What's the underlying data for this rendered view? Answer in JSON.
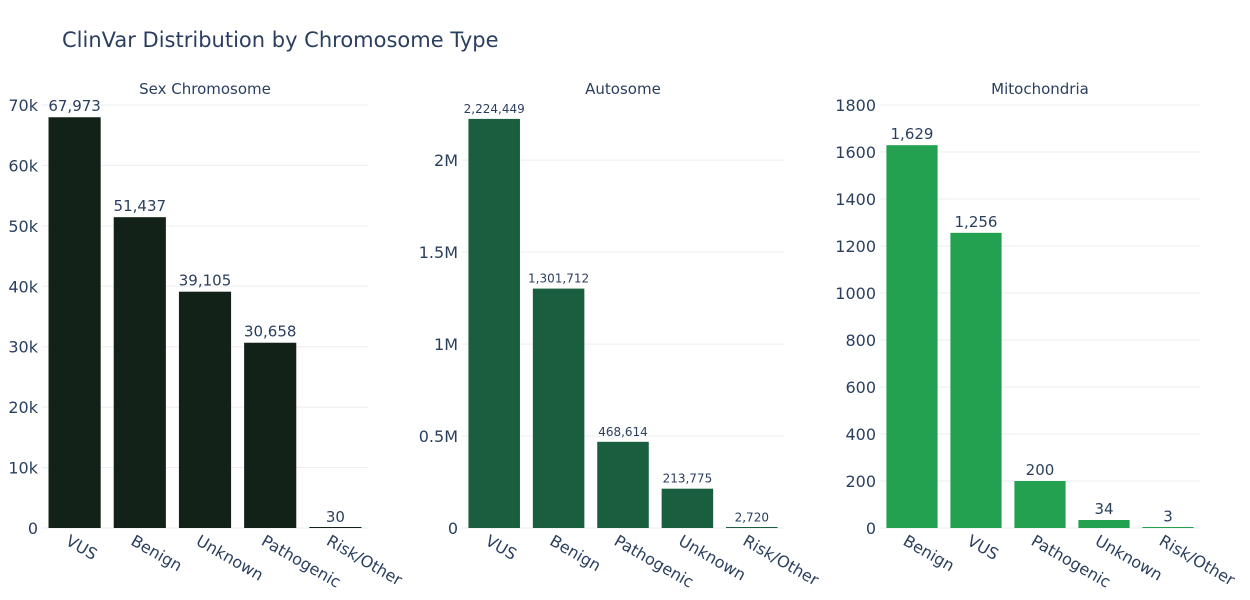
{
  "title": "ClinVar Distribution by Chromosome Type",
  "chart_data": [
    {
      "type": "bar",
      "title": "Sex Chromosome",
      "categories": [
        "VUS",
        "Benign",
        "Unknown",
        "Pathogenic",
        "Risk/Other"
      ],
      "values": [
        67973,
        51437,
        39105,
        30658,
        30
      ],
      "value_labels": [
        "67,973",
        "51,437",
        "39,105",
        "30,658",
        "30"
      ],
      "ylim": [
        0,
        70000
      ],
      "yticks": [
        0,
        10000,
        20000,
        30000,
        40000,
        50000,
        60000,
        70000
      ],
      "ytick_labels": [
        "0",
        "10k",
        "20k",
        "30k",
        "40k",
        "50k",
        "60k",
        "70k"
      ],
      "color": "#132218",
      "grid": true
    },
    {
      "type": "bar",
      "title": "Autosome",
      "categories": [
        "VUS",
        "Benign",
        "Pathogenic",
        "Unknown",
        "Risk/Other"
      ],
      "values": [
        2224449,
        1301712,
        468614,
        213775,
        2720
      ],
      "value_labels": [
        "2,224,449",
        "1,301,712",
        "468,614",
        "213,775",
        "2,720"
      ],
      "ylim": [
        0,
        2300000
      ],
      "yticks": [
        0,
        500000,
        1000000,
        1500000,
        2000000
      ],
      "ytick_labels": [
        "0",
        "0.5M",
        "1M",
        "1.5M",
        "2M"
      ],
      "color": "#185e3f",
      "grid": true
    },
    {
      "type": "bar",
      "title": "Mitochondria",
      "categories": [
        "Benign",
        "VUS",
        "Pathogenic",
        "Unknown",
        "Risk/Other"
      ],
      "values": [
        1629,
        1256,
        200,
        34,
        3
      ],
      "value_labels": [
        "1,629",
        "1,256",
        "200",
        "34",
        "3"
      ],
      "ylim": [
        0,
        1800
      ],
      "yticks": [
        0,
        200,
        400,
        600,
        800,
        1000,
        1200,
        1400,
        1600,
        1800
      ],
      "ytick_labels": [
        "0",
        "200",
        "400",
        "600",
        "800",
        "1000",
        "1200",
        "1400",
        "1600",
        "1800"
      ],
      "color": "#23a150",
      "grid": true
    }
  ]
}
